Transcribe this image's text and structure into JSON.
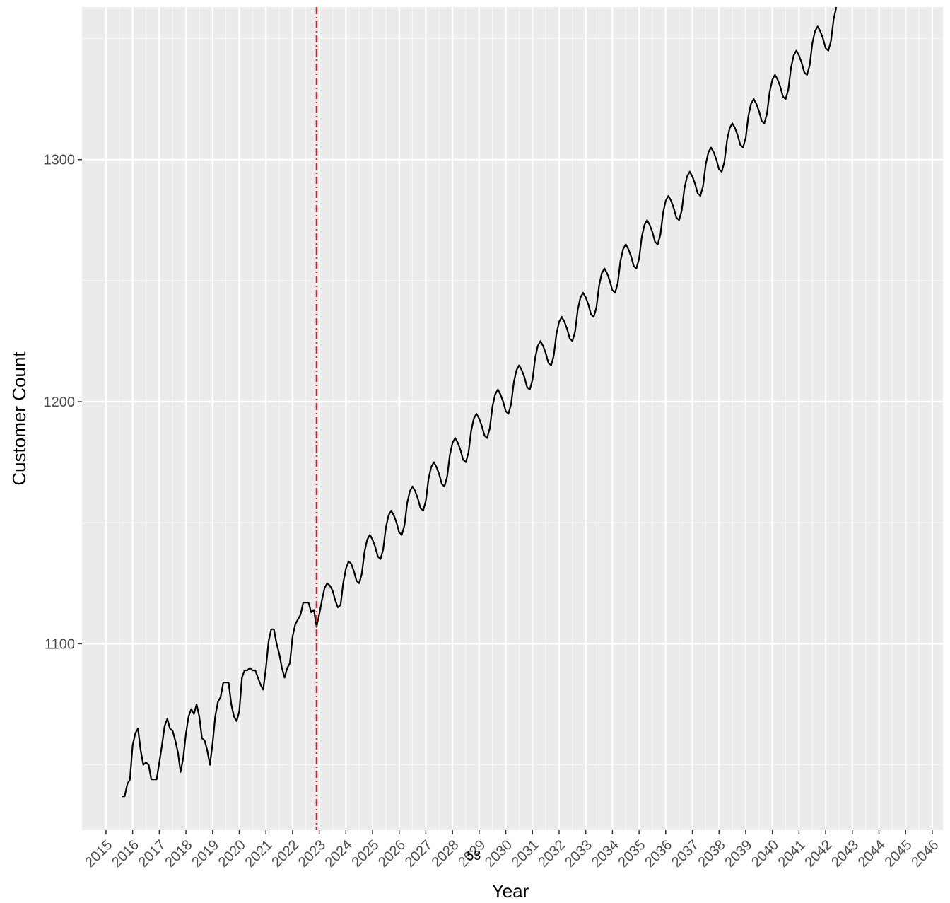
{
  "chart_data": {
    "type": "line",
    "title": "",
    "xlabel": "Year",
    "ylabel": "Customer Count",
    "xlim": [
      2014.1,
      2046.4
    ],
    "ylim": [
      1023,
      1363
    ],
    "grid": true,
    "legend": "none",
    "x_ticks": [
      "2015",
      "2016",
      "2017",
      "2018",
      "2019",
      "2020",
      "2021",
      "2022",
      "2023",
      "2024",
      "2025",
      "2026",
      "2027",
      "2028",
      "2029",
      "2030",
      "2031",
      "2032",
      "2033",
      "2034",
      "2035",
      "2036",
      "2037",
      "2038",
      "2039",
      "2040",
      "2041",
      "2042",
      "2043",
      "2044",
      "2045",
      "2046"
    ],
    "y_ticks": [
      1100,
      1200,
      1300
    ],
    "vline": {
      "x": 2022.9,
      "color": "#e41a1c",
      "style": "dashdot"
    },
    "annotation": {
      "text": "53",
      "x": 2028.8,
      "y": 1023
    },
    "series": [
      {
        "color": "#000000",
        "points": [
          [
            2015.6,
            1037
          ],
          [
            2015.7,
            1037
          ],
          [
            2015.8,
            1042
          ],
          [
            2015.9,
            1044
          ],
          [
            2016.0,
            1058
          ],
          [
            2016.1,
            1063
          ],
          [
            2016.2,
            1065
          ],
          [
            2016.3,
            1056
          ],
          [
            2016.4,
            1050
          ],
          [
            2016.5,
            1051
          ],
          [
            2016.6,
            1050
          ],
          [
            2016.7,
            1044
          ],
          [
            2016.8,
            1044
          ],
          [
            2016.9,
            1044
          ],
          [
            2017.0,
            1051
          ],
          [
            2017.1,
            1058
          ],
          [
            2017.2,
            1066
          ],
          [
            2017.3,
            1069
          ],
          [
            2017.4,
            1065
          ],
          [
            2017.5,
            1064
          ],
          [
            2017.6,
            1060
          ],
          [
            2017.7,
            1055
          ],
          [
            2017.8,
            1047
          ],
          [
            2017.9,
            1053
          ],
          [
            2018.0,
            1063
          ],
          [
            2018.1,
            1070
          ],
          [
            2018.2,
            1073
          ],
          [
            2018.3,
            1071
          ],
          [
            2018.4,
            1075
          ],
          [
            2018.5,
            1070
          ],
          [
            2018.6,
            1061
          ],
          [
            2018.7,
            1060
          ],
          [
            2018.8,
            1056
          ],
          [
            2018.9,
            1050
          ],
          [
            2019.0,
            1059
          ],
          [
            2019.1,
            1070
          ],
          [
            2019.2,
            1076
          ],
          [
            2019.3,
            1078
          ],
          [
            2019.4,
            1084
          ],
          [
            2019.5,
            1084
          ],
          [
            2019.6,
            1084
          ],
          [
            2019.7,
            1075
          ],
          [
            2019.8,
            1070
          ],
          [
            2019.9,
            1068
          ],
          [
            2020.0,
            1072
          ],
          [
            2020.1,
            1086
          ],
          [
            2020.2,
            1089
          ],
          [
            2020.3,
            1089
          ],
          [
            2020.4,
            1090
          ],
          [
            2020.5,
            1089
          ],
          [
            2020.6,
            1089
          ],
          [
            2020.7,
            1086
          ],
          [
            2020.8,
            1083
          ],
          [
            2020.9,
            1081
          ],
          [
            2021.0,
            1090
          ],
          [
            2021.1,
            1101
          ],
          [
            2021.2,
            1106
          ],
          [
            2021.3,
            1106
          ],
          [
            2021.4,
            1100
          ],
          [
            2021.5,
            1096
          ],
          [
            2021.6,
            1090
          ],
          [
            2021.7,
            1086
          ],
          [
            2021.8,
            1090
          ],
          [
            2021.9,
            1092
          ],
          [
            2022.0,
            1103
          ],
          [
            2022.1,
            1108
          ],
          [
            2022.2,
            1110
          ],
          [
            2022.3,
            1112
          ],
          [
            2022.4,
            1117
          ],
          [
            2022.5,
            1117
          ],
          [
            2022.6,
            1117
          ],
          [
            2022.7,
            1113
          ],
          [
            2022.8,
            1114
          ],
          [
            2022.9,
            1107
          ],
          [
            2023.0,
            1112
          ],
          [
            2023.1,
            1118
          ],
          [
            2023.2,
            1123
          ],
          [
            2023.3,
            1125
          ],
          [
            2023.4,
            1124
          ],
          [
            2023.5,
            1122
          ],
          [
            2023.6,
            1118
          ],
          [
            2023.7,
            1115
          ],
          [
            2023.8,
            1116
          ],
          [
            2023.9,
            1125
          ],
          [
            2024.0,
            1131
          ],
          [
            2024.1,
            1134
          ],
          [
            2024.2,
            1133
          ],
          [
            2024.3,
            1130
          ],
          [
            2024.4,
            1126
          ],
          [
            2024.5,
            1125
          ],
          [
            2024.6,
            1129
          ],
          [
            2024.7,
            1138
          ],
          [
            2024.8,
            1143
          ],
          [
            2024.9,
            1145
          ],
          [
            2025.0,
            1143
          ],
          [
            2025.1,
            1140
          ],
          [
            2025.2,
            1136
          ],
          [
            2025.3,
            1135
          ],
          [
            2025.4,
            1139
          ],
          [
            2025.5,
            1148
          ],
          [
            2025.6,
            1153
          ],
          [
            2025.7,
            1155
          ],
          [
            2025.8,
            1153
          ],
          [
            2025.9,
            1150
          ],
          [
            2026.0,
            1146
          ],
          [
            2026.1,
            1145
          ],
          [
            2026.2,
            1149
          ],
          [
            2026.3,
            1158
          ],
          [
            2026.4,
            1163
          ],
          [
            2026.5,
            1165
          ],
          [
            2026.6,
            1163
          ],
          [
            2026.7,
            1160
          ],
          [
            2026.8,
            1156
          ],
          [
            2026.9,
            1155
          ],
          [
            2027.0,
            1159
          ],
          [
            2027.1,
            1168
          ],
          [
            2027.2,
            1173
          ],
          [
            2027.3,
            1175
          ],
          [
            2027.4,
            1173
          ],
          [
            2027.5,
            1170
          ],
          [
            2027.6,
            1166
          ],
          [
            2027.7,
            1165
          ],
          [
            2027.8,
            1169
          ],
          [
            2027.9,
            1178
          ],
          [
            2028.0,
            1183
          ],
          [
            2028.1,
            1185
          ],
          [
            2028.2,
            1183
          ],
          [
            2028.3,
            1180
          ],
          [
            2028.4,
            1176
          ],
          [
            2028.5,
            1175
          ],
          [
            2028.6,
            1179
          ],
          [
            2028.7,
            1188
          ],
          [
            2028.8,
            1193
          ],
          [
            2028.9,
            1195
          ],
          [
            2029.0,
            1193
          ],
          [
            2029.1,
            1190
          ],
          [
            2029.2,
            1186
          ],
          [
            2029.3,
            1185
          ],
          [
            2029.4,
            1189
          ],
          [
            2029.5,
            1198
          ],
          [
            2029.6,
            1203
          ],
          [
            2029.7,
            1205
          ],
          [
            2029.8,
            1203
          ],
          [
            2029.9,
            1200
          ],
          [
            2030.0,
            1196
          ],
          [
            2030.1,
            1195
          ],
          [
            2030.2,
            1199
          ],
          [
            2030.3,
            1208
          ],
          [
            2030.4,
            1213
          ],
          [
            2030.5,
            1215
          ],
          [
            2030.6,
            1213
          ],
          [
            2030.7,
            1210
          ],
          [
            2030.8,
            1206
          ],
          [
            2030.9,
            1205
          ],
          [
            2031.0,
            1209
          ],
          [
            2031.1,
            1218
          ],
          [
            2031.2,
            1223
          ],
          [
            2031.3,
            1225
          ],
          [
            2031.4,
            1223
          ],
          [
            2031.5,
            1220
          ],
          [
            2031.6,
            1216
          ],
          [
            2031.7,
            1215
          ],
          [
            2031.8,
            1219
          ],
          [
            2031.9,
            1228
          ],
          [
            2032.0,
            1233
          ],
          [
            2032.1,
            1235
          ],
          [
            2032.2,
            1233
          ],
          [
            2032.3,
            1230
          ],
          [
            2032.4,
            1226
          ],
          [
            2032.5,
            1225
          ],
          [
            2032.6,
            1229
          ],
          [
            2032.7,
            1238
          ],
          [
            2032.8,
            1243
          ],
          [
            2032.9,
            1245
          ],
          [
            2033.0,
            1243
          ],
          [
            2033.1,
            1240
          ],
          [
            2033.2,
            1236
          ],
          [
            2033.3,
            1235
          ],
          [
            2033.4,
            1239
          ],
          [
            2033.5,
            1248
          ],
          [
            2033.6,
            1253
          ],
          [
            2033.7,
            1255
          ],
          [
            2033.8,
            1253
          ],
          [
            2033.9,
            1250
          ],
          [
            2034.0,
            1246
          ],
          [
            2034.1,
            1245
          ],
          [
            2034.2,
            1249
          ],
          [
            2034.3,
            1258
          ],
          [
            2034.4,
            1263
          ],
          [
            2034.5,
            1265
          ],
          [
            2034.6,
            1263
          ],
          [
            2034.7,
            1260
          ],
          [
            2034.8,
            1256
          ],
          [
            2034.9,
            1255
          ],
          [
            2035.0,
            1259
          ],
          [
            2035.1,
            1268
          ],
          [
            2035.2,
            1273
          ],
          [
            2035.3,
            1275
          ],
          [
            2035.4,
            1273
          ],
          [
            2035.5,
            1270
          ],
          [
            2035.6,
            1266
          ],
          [
            2035.7,
            1265
          ],
          [
            2035.8,
            1269
          ],
          [
            2035.9,
            1278
          ],
          [
            2036.0,
            1283
          ],
          [
            2036.1,
            1285
          ],
          [
            2036.2,
            1283
          ],
          [
            2036.3,
            1280
          ],
          [
            2036.4,
            1276
          ],
          [
            2036.5,
            1275
          ],
          [
            2036.6,
            1279
          ],
          [
            2036.7,
            1288
          ],
          [
            2036.8,
            1293
          ],
          [
            2036.9,
            1295
          ],
          [
            2037.0,
            1293
          ],
          [
            2037.1,
            1290
          ],
          [
            2037.2,
            1286
          ],
          [
            2037.3,
            1285
          ],
          [
            2037.4,
            1289
          ],
          [
            2037.5,
            1298
          ],
          [
            2037.6,
            1303
          ],
          [
            2037.7,
            1305
          ],
          [
            2037.8,
            1303
          ],
          [
            2037.9,
            1300
          ],
          [
            2038.0,
            1296
          ],
          [
            2038.1,
            1295
          ],
          [
            2038.2,
            1299
          ],
          [
            2038.3,
            1308
          ],
          [
            2038.4,
            1313
          ],
          [
            2038.5,
            1315
          ],
          [
            2038.6,
            1313
          ],
          [
            2038.7,
            1310
          ],
          [
            2038.8,
            1306
          ],
          [
            2038.9,
            1305
          ],
          [
            2039.0,
            1309
          ],
          [
            2039.1,
            1318
          ],
          [
            2039.2,
            1323
          ],
          [
            2039.3,
            1325
          ],
          [
            2039.4,
            1323
          ],
          [
            2039.5,
            1320
          ],
          [
            2039.6,
            1316
          ],
          [
            2039.7,
            1315
          ],
          [
            2039.8,
            1319
          ],
          [
            2039.9,
            1328
          ],
          [
            2040.0,
            1333
          ],
          [
            2040.1,
            1335
          ],
          [
            2040.2,
            1333
          ],
          [
            2040.3,
            1330
          ],
          [
            2040.4,
            1326
          ],
          [
            2040.5,
            1325
          ],
          [
            2040.6,
            1329
          ],
          [
            2040.7,
            1338
          ],
          [
            2040.8,
            1343
          ],
          [
            2040.9,
            1345
          ],
          [
            2041.0,
            1343
          ],
          [
            2041.1,
            1340
          ],
          [
            2041.2,
            1336
          ],
          [
            2041.3,
            1335
          ],
          [
            2041.4,
            1339
          ],
          [
            2041.5,
            1348
          ],
          [
            2041.6,
            1353
          ],
          [
            2041.7,
            1355
          ],
          [
            2041.8,
            1353
          ],
          [
            2041.9,
            1350
          ],
          [
            2042.0,
            1346
          ],
          [
            2042.1,
            1345
          ],
          [
            2042.2,
            1349
          ],
          [
            2042.3,
            1358
          ],
          [
            2042.4,
            1363
          ]
        ]
      }
    ]
  }
}
